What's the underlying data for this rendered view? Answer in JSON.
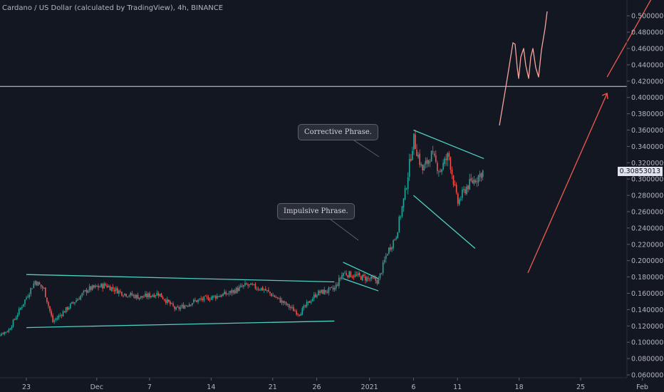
{
  "title": "Cardano / US Dollar (calculated by TradingView), 4h, BINANCE",
  "annotations": {
    "corrective": "Corrective Phrase.",
    "impulsive": "Impulsive Phrase."
  },
  "last_price": "0.30853013",
  "colors": {
    "background": "#131722",
    "up": "#26a69a",
    "down": "#ef5350",
    "trendline": "#4dd0c3",
    "projection": "#f05a4f",
    "horizontal_line": "#d1d4dc",
    "axis_text": "#b2b5be"
  },
  "chart_data": {
    "type": "candlestick",
    "title": "Cardano / US Dollar (calculated by TradingView), 4h, BINANCE",
    "x_ticks": [
      "23",
      "Dec",
      "7",
      "14",
      "21",
      "26",
      "2021",
      "6",
      "11",
      "18",
      "25",
      "Feb"
    ],
    "y_ticks": [
      0.06,
      0.08,
      0.1,
      0.12,
      0.14,
      0.16,
      0.18,
      0.2,
      0.22,
      0.24,
      0.26,
      0.28,
      0.3,
      0.32,
      0.34,
      0.36,
      0.38,
      0.4,
      0.42,
      0.44,
      0.46,
      0.48,
      0.5
    ],
    "ylim": [
      0.053,
      0.512
    ],
    "horizontal_level": 0.4135,
    "last_price": 0.30853013,
    "price_path": [
      [
        "2020-11-19",
        0.105
      ],
      [
        "2020-11-21",
        0.115
      ],
      [
        "2020-11-22",
        0.135
      ],
      [
        "2020-11-23",
        0.155
      ],
      [
        "2020-11-24",
        0.175
      ],
      [
        "2020-11-25",
        0.165
      ],
      [
        "2020-11-26",
        0.125
      ],
      [
        "2020-11-27",
        0.135
      ],
      [
        "2020-11-28",
        0.145
      ],
      [
        "2020-11-30",
        0.165
      ],
      [
        "2020-12-02",
        0.17
      ],
      [
        "2020-12-04",
        0.16
      ],
      [
        "2020-12-06",
        0.155
      ],
      [
        "2020-12-08",
        0.16
      ],
      [
        "2020-12-10",
        0.14
      ],
      [
        "2020-12-12",
        0.15
      ],
      [
        "2020-12-14",
        0.155
      ],
      [
        "2020-12-16",
        0.16
      ],
      [
        "2020-12-18",
        0.17
      ],
      [
        "2020-12-20",
        0.165
      ],
      [
        "2020-12-22",
        0.15
      ],
      [
        "2020-12-24",
        0.135
      ],
      [
        "2020-12-26",
        0.16
      ],
      [
        "2020-12-28",
        0.165
      ],
      [
        "2020-12-29",
        0.185
      ],
      [
        "2020-12-31",
        0.18
      ],
      [
        "2021-01-02",
        0.175
      ],
      [
        "2021-01-03",
        0.21
      ],
      [
        "2021-01-04",
        0.23
      ],
      [
        "2021-01-05",
        0.28
      ],
      [
        "2021-01-06",
        0.35
      ],
      [
        "2021-01-07",
        0.31
      ],
      [
        "2021-01-08",
        0.33
      ],
      [
        "2021-01-09",
        0.31
      ],
      [
        "2021-01-10",
        0.33
      ],
      [
        "2021-01-11",
        0.27
      ],
      [
        "2021-01-12",
        0.29
      ],
      [
        "2021-01-13",
        0.3
      ],
      [
        "2021-01-14",
        0.31
      ]
    ],
    "trendlines": [
      {
        "name": "range-top",
        "from": [
          "2020-11-23",
          0.183
        ],
        "to": [
          "2020-12-28",
          0.174
        ]
      },
      {
        "name": "range-bottom",
        "from": [
          "2020-11-23",
          0.118
        ],
        "to": [
          "2020-12-28",
          0.126
        ]
      },
      {
        "name": "flag-top",
        "from": [
          "2020-12-29",
          0.198
        ],
        "to": [
          "2021-01-02",
          0.178
        ]
      },
      {
        "name": "flag-bottom",
        "from": [
          "2020-12-29",
          0.178
        ],
        "to": [
          "2021-01-02",
          0.163
        ]
      },
      {
        "name": "wedge-top",
        "from": [
          "2021-01-06",
          0.36
        ],
        "to": [
          "2021-01-14",
          0.325
        ]
      },
      {
        "name": "wedge-bottom",
        "from": [
          "2021-01-06",
          0.28
        ],
        "to": [
          "2021-01-13",
          0.215
        ]
      }
    ],
    "projections": [
      {
        "name": "red-arrow-1",
        "from": [
          "2021-01-19",
          0.185
        ],
        "to": [
          "2021-01-28",
          0.405
        ]
      },
      {
        "name": "red-arrow-2",
        "from": [
          "2021-01-28",
          0.425
        ],
        "to": [
          "2021-02-02",
          0.52
        ]
      }
    ]
  }
}
